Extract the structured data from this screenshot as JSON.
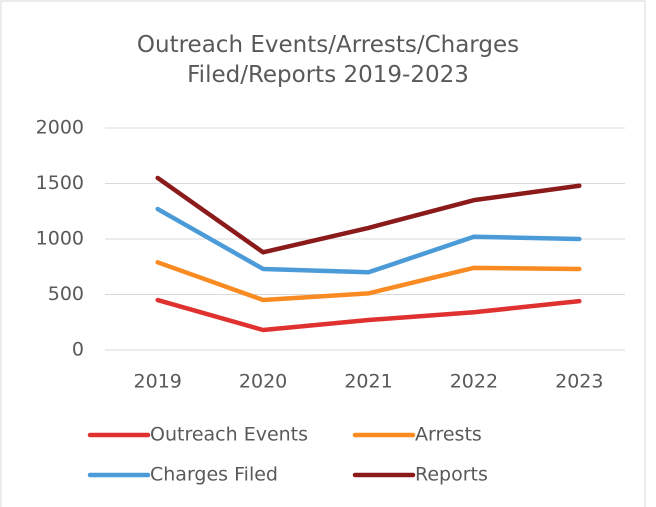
{
  "chart_data": {
    "type": "line",
    "title": "Outreach Events/Arrests/Charges Filed/Reports 2019-2023",
    "categories": [
      "2019",
      "2020",
      "2021",
      "2022",
      "2023"
    ],
    "series": [
      {
        "name": "Outreach Events",
        "color": "#e03131",
        "values": [
          450,
          180,
          270,
          340,
          440
        ]
      },
      {
        "name": "Arrests",
        "color": "#f98b22",
        "values": [
          790,
          450,
          510,
          740,
          730
        ]
      },
      {
        "name": "Charges Filed",
        "color": "#4c9bd9",
        "values": [
          1270,
          730,
          700,
          1020,
          1000
        ]
      },
      {
        "name": "Reports",
        "color": "#8b1a1a",
        "values": [
          1550,
          880,
          1100,
          1350,
          1480
        ]
      }
    ],
    "ylim": [
      0,
      2000
    ],
    "yticks": [
      0,
      500,
      1000,
      1500,
      2000
    ],
    "grid": true,
    "legend": "bottom"
  }
}
